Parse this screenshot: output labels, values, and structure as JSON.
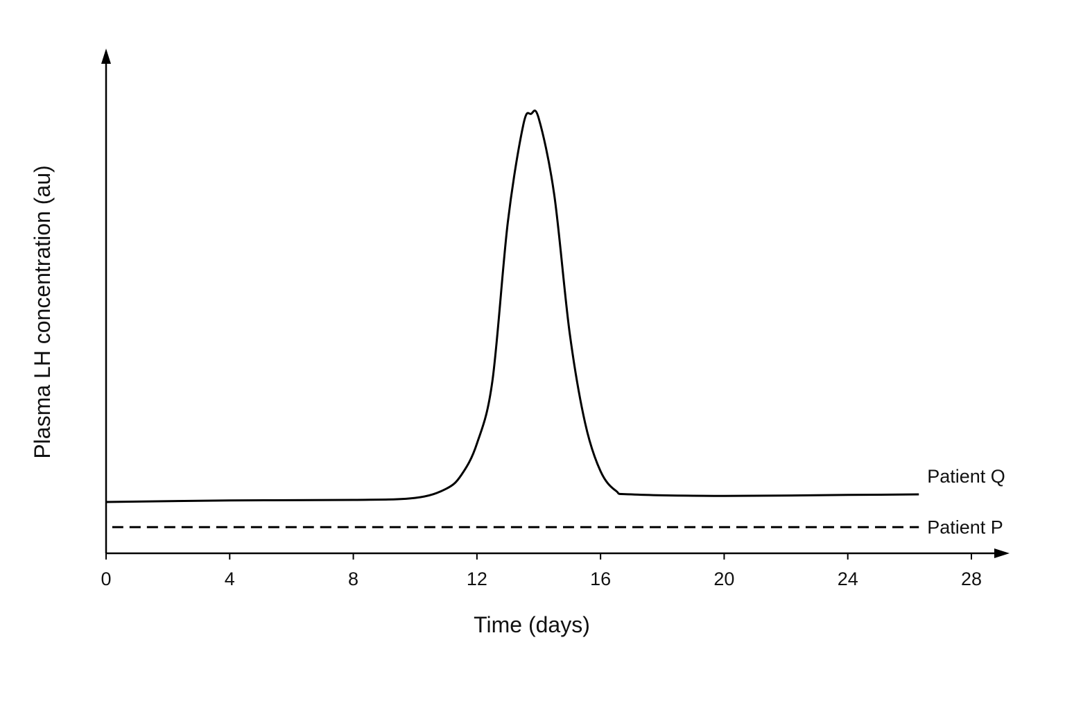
{
  "chart_data": {
    "type": "line",
    "x_label": "Time (days)",
    "y_label": "Plasma LH concentration (au)",
    "xlim": [
      0,
      29.2
    ],
    "xticks": [
      0,
      4,
      8,
      12,
      16,
      20,
      24,
      28
    ],
    "ylim": [
      0,
      100
    ],
    "series": [
      {
        "name": "Patient Q",
        "color": "#000000",
        "line_style": "solid",
        "x": [
          0,
          4,
          8,
          10,
          11,
          11.5,
          12,
          12.5,
          13,
          13.5,
          13.75,
          14,
          14.5,
          15,
          15.5,
          16,
          16.5,
          17,
          20,
          24,
          26.3
        ],
        "values": [
          10.2,
          10.5,
          10.6,
          11.0,
          12.8,
          15.6,
          21.8,
          34.2,
          65.8,
          85.1,
          87.3,
          86.4,
          71.3,
          43.8,
          25.9,
          16.3,
          12.4,
          11.7,
          11.4,
          11.6,
          11.7
        ]
      },
      {
        "name": "Patient P",
        "color": "#000000",
        "line_style": "dashed",
        "x": [
          0.2,
          26.3
        ],
        "values": [
          5.2,
          5.2
        ]
      }
    ]
  }
}
